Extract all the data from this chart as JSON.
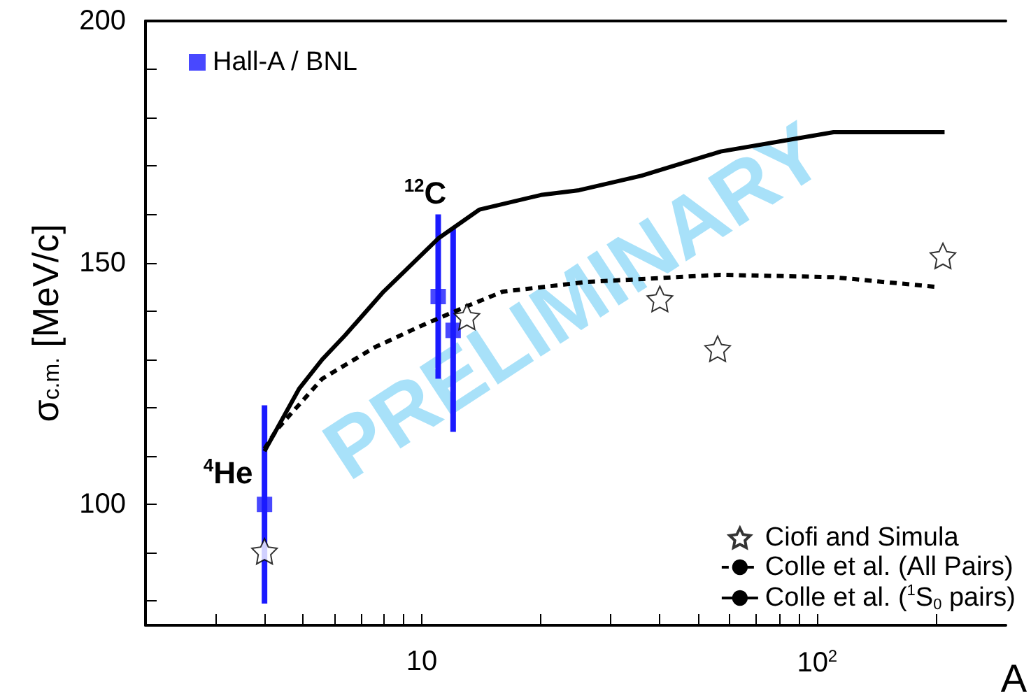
{
  "chart_data": {
    "type": "scatter",
    "ylabel": "σ$_{c.m.}$ [MeV/c]",
    "xlabel": "A",
    "log": "x",
    "xlim": [
      2,
      300
    ],
    "xticks": [
      {
        "value": 3,
        "label": null
      },
      {
        "value": 4,
        "label": null
      },
      {
        "value": 5,
        "label": null
      },
      {
        "value": 6,
        "label": null
      },
      {
        "value": 7,
        "label": null
      },
      {
        "value": 8,
        "label": null
      },
      {
        "value": 9,
        "label": null
      },
      10,
      {
        "value": 20,
        "label": null
      },
      {
        "value": 30,
        "label": null
      },
      {
        "value": 40,
        "label": null
      },
      {
        "value": 50,
        "label": null
      },
      {
        "value": 60,
        "label": null
      },
      {
        "value": 70,
        "label": null
      },
      {
        "value": 80,
        "label": null
      },
      {
        "value": 90,
        "label": null
      },
      {
        "value": 100,
        "label": "10$^{2}$"
      },
      {
        "value": 200,
        "label": null
      }
    ],
    "ylim": [
      75,
      200
    ],
    "yticks": [
      {
        "value": 80,
        "label": null
      },
      {
        "value": 90,
        "label": null
      },
      100,
      {
        "value": 110,
        "label": null
      },
      {
        "value": 120,
        "label": null
      },
      {
        "value": 130,
        "label": null
      },
      {
        "value": 140,
        "label": null
      },
      150,
      {
        "value": 160,
        "label": null
      },
      {
        "value": 170,
        "label": null
      },
      {
        "value": 180,
        "label": null
      },
      {
        "value": 190,
        "label": null
      },
      200
    ],
    "grid": false,
    "legend": "bottom right",
    "series": [
      {
        "name": "Hall-A / BNL",
        "marker": "square",
        "color": "#1a1aff",
        "x": [
          4,
          11,
          12
        ],
        "values": [
          100,
          143,
          136
        ],
        "errors": [
          20.5,
          17,
          21
        ]
      },
      {
        "name": "Ciofi and Simula",
        "marker": "star",
        "color": "#000000",
        "x": [
          4,
          13,
          40,
          56,
          208
        ],
        "values": [
          90.3,
          138.8,
          142.5,
          132.2,
          151.4
        ]
      },
      {
        "name": "Colle et al. (All Pairs)",
        "type": "line",
        "line_style": "dashed",
        "marker": "none",
        "color": "#000000",
        "x": [
          4,
          4.3,
          5.6,
          7.6,
          10,
          13,
          16,
          26,
          57,
          110,
          200
        ],
        "values": [
          111.5,
          115.5,
          126,
          132.5,
          137,
          141,
          144,
          146,
          147.5,
          147,
          145
        ]
      },
      {
        "name": "Colle et al. ($^{1}$S$_{0}$ pairs)",
        "type": "line",
        "line_style": "solid",
        "marker": "none",
        "color": "#000000",
        "x": [
          4,
          4.9,
          5.6,
          6.4,
          8,
          11,
          14,
          20,
          25,
          36,
          57,
          110,
          210
        ],
        "values": [
          111,
          124,
          130,
          135,
          144,
          155,
          161,
          164,
          165,
          168,
          173,
          177,
          177
        ]
      }
    ],
    "annotations": [
      "$^{4}$He",
      "$^{12}$C",
      "PRELIMINARY"
    ]
  }
}
